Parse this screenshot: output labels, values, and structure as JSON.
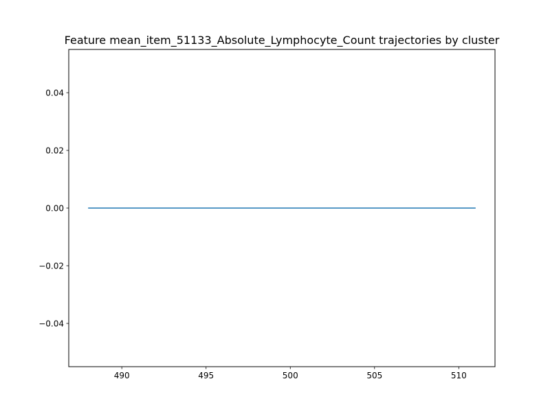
{
  "chart_data": {
    "type": "line",
    "title": "Feature mean_item_51133_Absolute_Lymphocyte_Count trajectories by cluster",
    "xlabel": "",
    "ylabel": "",
    "xlim": [
      486.85,
      512.15
    ],
    "ylim": [
      -0.055,
      0.055
    ],
    "x_ticks": [
      490,
      495,
      500,
      505,
      510
    ],
    "x_tick_labels": [
      "490",
      "495",
      "500",
      "505",
      "510"
    ],
    "y_ticks": [
      -0.04,
      -0.02,
      0.0,
      0.02,
      0.04
    ],
    "y_tick_labels": [
      "−0.04",
      "−0.02",
      "0.00",
      "0.02",
      "0.04"
    ],
    "grid": false,
    "series": [
      {
        "color": "#1f77b4",
        "x": [
          488,
          489,
          490,
          491,
          492,
          493,
          494,
          495,
          496,
          497,
          498,
          499,
          500,
          501,
          502,
          503,
          504,
          505,
          506,
          507,
          508,
          509,
          510,
          511
        ],
        "y": [
          0,
          0,
          0,
          0,
          0,
          0,
          0,
          0,
          0,
          0,
          0,
          0,
          0,
          0,
          0,
          0,
          0,
          0,
          0,
          0,
          0,
          0,
          0,
          0
        ]
      }
    ]
  }
}
